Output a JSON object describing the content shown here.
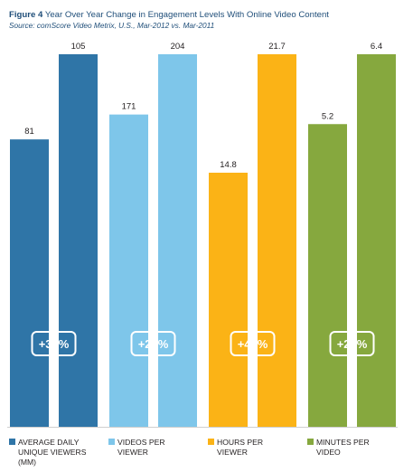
{
  "figure": {
    "label": "Figure 4",
    "title": "Year Over Year Change in Engagement Levels With Online Video Content",
    "source": "Source: comScore Video Metrix, U.S., Mar-2012 vs. Mar-2011"
  },
  "colors": {
    "group1": "#2f75a7",
    "group2": "#7ec6ea",
    "group3": "#fbb316",
    "group4": "#86a83e",
    "badge_text": "#ffffff"
  },
  "chart_data": {
    "type": "bar",
    "categories": [
      "AVERAGE DAILY UNIQUE VIEWERS (MM)",
      "VIDEOS PER VIEWER",
      "HOURS PER VIEWER",
      "MINUTES PER VIDEO"
    ],
    "series": [
      {
        "values": [
          81,
          171,
          14.8,
          5.2
        ]
      },
      {
        "values": [
          105,
          204,
          21.7,
          6.4
        ]
      }
    ],
    "value_labels": [
      [
        "81",
        "105"
      ],
      [
        "171",
        "204"
      ],
      [
        "14.8",
        "21.7"
      ],
      [
        "5.2",
        "6.4"
      ]
    ],
    "change_labels": [
      "+30%",
      "+20%",
      "+47%",
      "+23%"
    ],
    "legend": [
      {
        "text": "AVERAGE DAILY\nUNIQUE VIEWERS\n(MM)",
        "color": "#2f75a7"
      },
      {
        "text": "VIDEOS PER\nVIEWER",
        "color": "#7ec6ea"
      },
      {
        "text": "HOURS PER\nVIEWER",
        "color": "#fbb316"
      },
      {
        "text": "MINUTES PER\nVIDEO",
        "color": "#86a83e"
      }
    ],
    "scale": "each category scaled independently; taller bar fills the panel"
  }
}
